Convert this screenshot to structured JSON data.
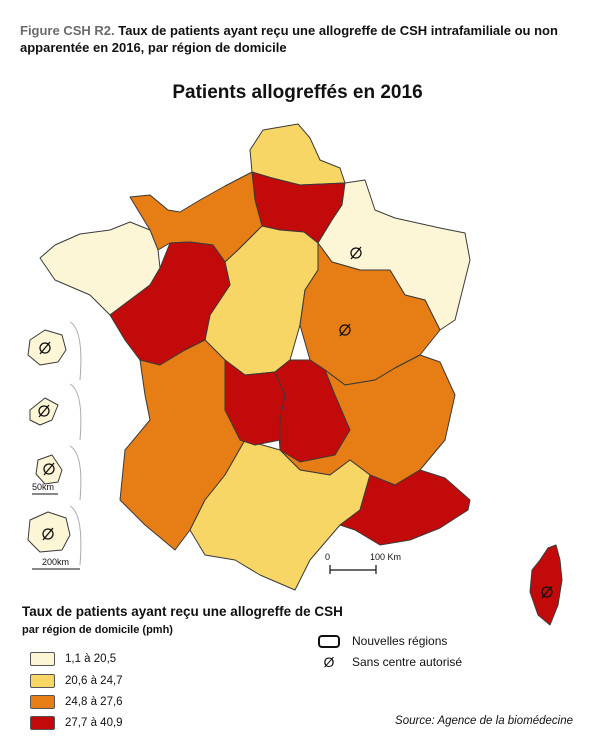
{
  "caption": {
    "figure_label": "Figure CSH R2.",
    "text": "Taux de patients ayant reçu une allogreffe de CSH intrafamiliale ou non apparentée en 2016, par région de domicile"
  },
  "map_title": "Patients allogreffés en 2016",
  "colors": {
    "class1": "#fdf6d6",
    "class2": "#f8d666",
    "class3": "#e67d15",
    "class4": "#c30a0a",
    "border": "#3a3a3a"
  },
  "legend": {
    "title": "Taux de patients ayant reçu une allogreffe de CSH",
    "subtitle": "par région de domicile (pmh)",
    "classes": [
      {
        "label": "1,1 à 20,5",
        "color": "#fdf6d6"
      },
      {
        "label": "20,6 à 24,7",
        "color": "#f8d666"
      },
      {
        "label": "24,8 à 27,6",
        "color": "#e67d15"
      },
      {
        "label": "27,7 à 40,9",
        "color": "#c30a0a"
      }
    ]
  },
  "symbols": {
    "new_regions": "Nouvelles régions",
    "no_center": "Sans centre autorisé",
    "no_center_glyph": "Ø"
  },
  "scale": {
    "main_zero": "0",
    "main_label": "100 Km",
    "inset_50": "50km",
    "inset_200": "200km"
  },
  "source": "Source: Agence de la biomédecine"
}
